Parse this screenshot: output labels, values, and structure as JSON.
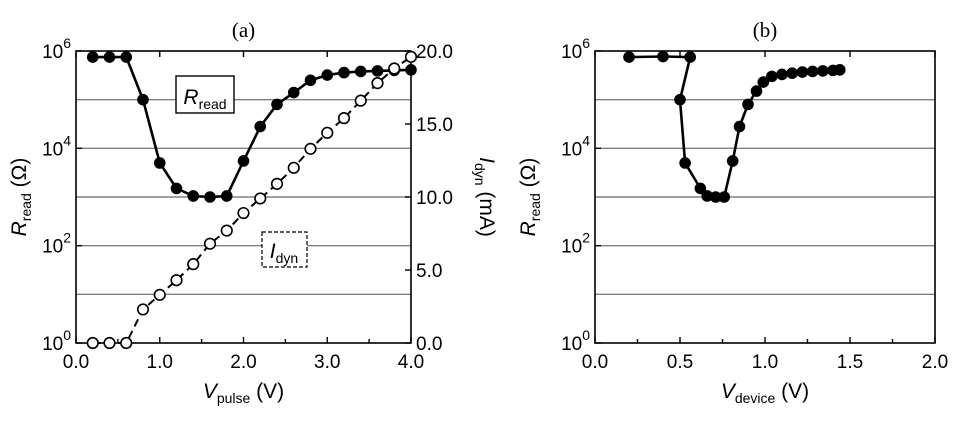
{
  "chart_data": [
    {
      "type": "line",
      "panel_label": "(a)",
      "xlabel": "V",
      "xlabel_sub": "pulse",
      "xlabel_unit": " (V)",
      "ylabel": "R",
      "ylabel_sub": "read",
      "ylabel_unit": " (Ω)",
      "y2label": "I",
      "y2label_sub": "dyn",
      "y2label_unit": " (mA)",
      "xlim": [
        0,
        4
      ],
      "ylim": [
        1,
        1000000
      ],
      "yscale": "log",
      "y2lim": [
        0,
        20
      ],
      "x_ticks": [
        "0.0",
        "1.0",
        "2.0",
        "3.0",
        "4.0"
      ],
      "y_ticks": [
        {
          "base": "10",
          "exp": "0"
        },
        {
          "base": "10",
          "exp": "2"
        },
        {
          "base": "10",
          "exp": "4"
        },
        {
          "base": "10",
          "exp": "6"
        }
      ],
      "y2_ticks": [
        "0.0",
        "5.0",
        "10.0",
        "15.0",
        "20.0"
      ],
      "series": [
        {
          "name": "R",
          "name_sub": "read",
          "axis": "left",
          "style": "filled-solid",
          "x": [
            0.2,
            0.4,
            0.6,
            0.8,
            1.0,
            1.2,
            1.4,
            1.6,
            1.8,
            2.0,
            2.2,
            2.4,
            2.6,
            2.8,
            3.0,
            3.2,
            3.4,
            3.6,
            3.8,
            4.0
          ],
          "y": [
            750000,
            750000,
            750000,
            100000,
            5000,
            1500,
            1050,
            1000,
            1050,
            5500,
            28000,
            80000,
            140000,
            250000,
            320000,
            360000,
            380000,
            390000,
            400000,
            410000
          ]
        },
        {
          "name": "I",
          "name_sub": "dyn",
          "axis": "right",
          "style": "open-dashed",
          "x": [
            0.2,
            0.4,
            0.6,
            0.8,
            1.0,
            1.2,
            1.4,
            1.6,
            1.8,
            2.0,
            2.2,
            2.4,
            2.6,
            2.8,
            3.0,
            3.2,
            3.4,
            3.6,
            3.8,
            4.0
          ],
          "y": [
            0.0,
            0.0,
            0.0,
            2.3,
            3.3,
            4.3,
            5.4,
            6.8,
            7.7,
            8.9,
            9.9,
            10.9,
            12.0,
            13.3,
            14.4,
            15.4,
            16.6,
            17.8,
            18.8,
            19.6
          ]
        }
      ],
      "grid": "horizontal",
      "annotations": [
        "boxed R_read label",
        "dashed-boxed I_dyn label"
      ]
    },
    {
      "type": "line",
      "panel_label": "(b)",
      "xlabel": "V",
      "xlabel_sub": "device",
      "xlabel_unit": " (V)",
      "ylabel": "R",
      "ylabel_sub": "read",
      "ylabel_unit": " (Ω)",
      "xlim": [
        0,
        2
      ],
      "ylim": [
        1,
        1000000
      ],
      "yscale": "log",
      "x_ticks": [
        "0.0",
        "0.5",
        "1.0",
        "1.5",
        "2.0"
      ],
      "y_ticks": [
        {
          "base": "10",
          "exp": "0"
        },
        {
          "base": "10",
          "exp": "2"
        },
        {
          "base": "10",
          "exp": "4"
        },
        {
          "base": "10",
          "exp": "6"
        }
      ],
      "series": [
        {
          "axis": "left",
          "style": "filled-solid",
          "x": [
            0.2,
            0.4,
            0.56,
            0.5,
            0.53,
            0.62,
            0.66,
            0.71,
            0.76,
            0.81,
            0.85,
            0.9,
            0.95,
            0.99,
            1.04,
            1.1,
            1.16,
            1.22,
            1.28,
            1.34,
            1.4,
            1.44
          ],
          "y": [
            750000,
            770000,
            750000,
            100000,
            5000,
            1500,
            1050,
            1000,
            1000,
            5500,
            28000,
            80000,
            150000,
            230000,
            300000,
            330000,
            350000,
            370000,
            380000,
            390000,
            400000,
            410000
          ]
        }
      ],
      "grid": "horizontal"
    }
  ]
}
